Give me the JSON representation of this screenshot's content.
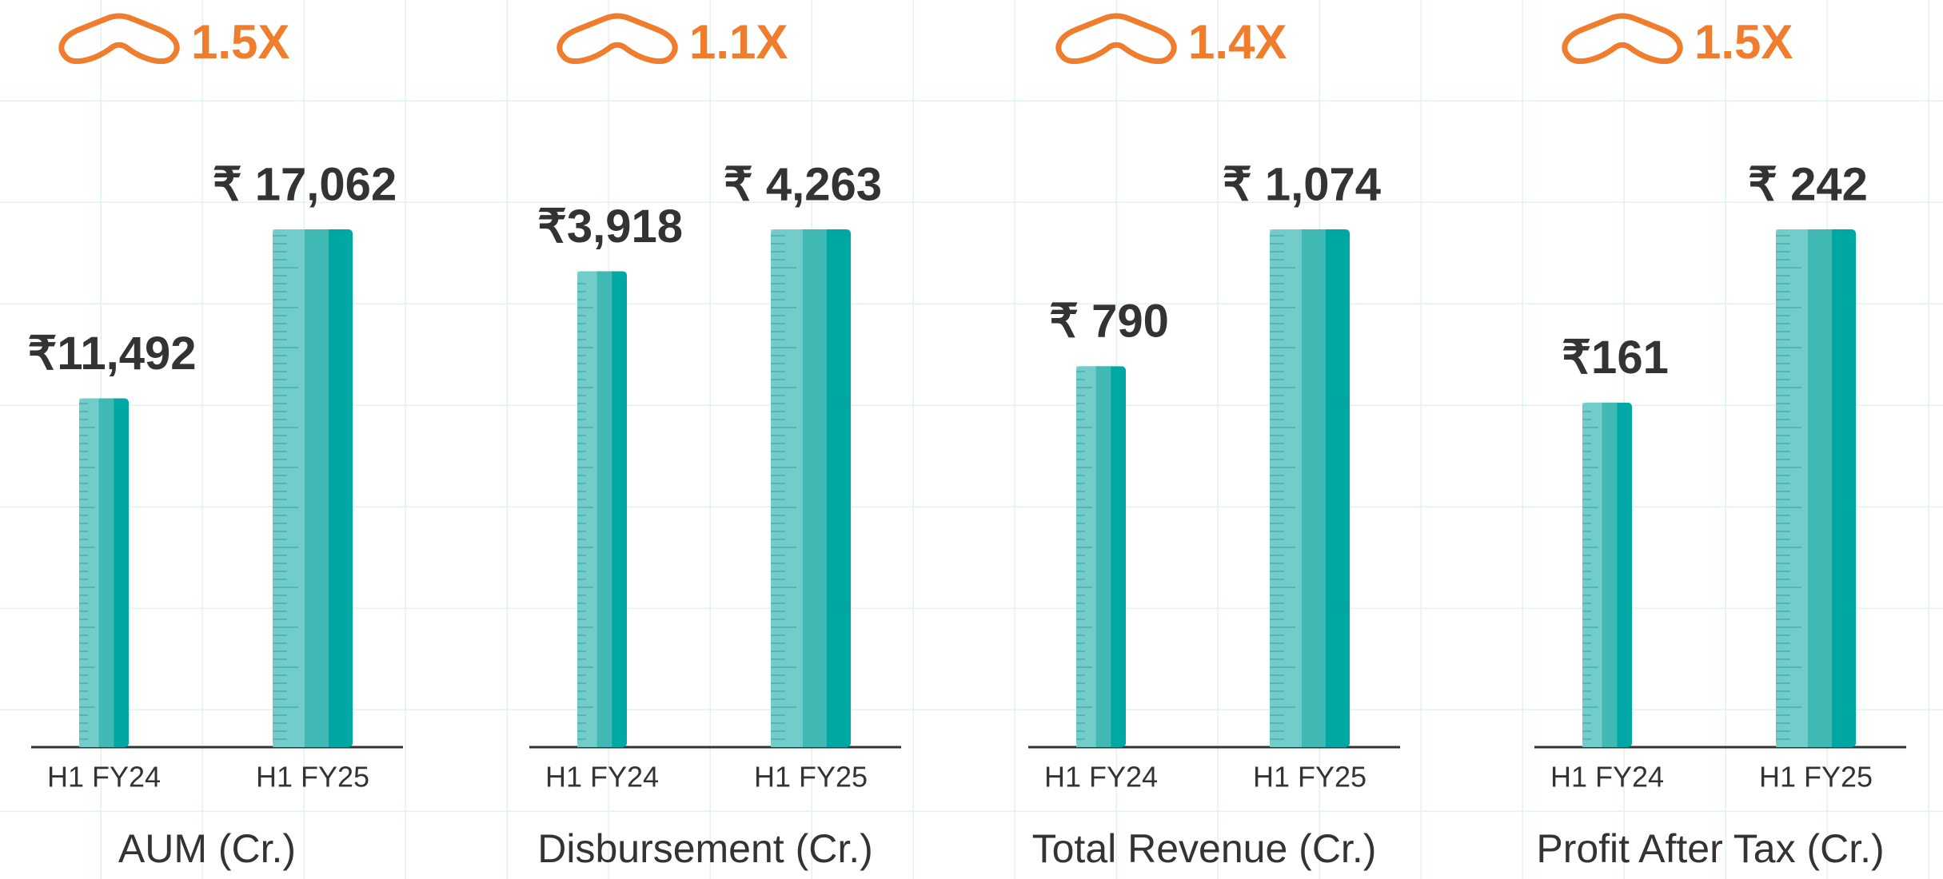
{
  "chart_data": [
    {
      "type": "bar",
      "title": "AUM (Cr.)",
      "growth": "1.5X",
      "categories": [
        "H1 FY24",
        "H1 FY25"
      ],
      "values": [
        11492,
        17062
      ],
      "value_labels": [
        "₹11,492",
        "₹ 17,062"
      ],
      "color": "#00a8a3"
    },
    {
      "type": "bar",
      "title": "Disbursement (Cr.)",
      "growth": "1.1X",
      "categories": [
        "H1 FY24",
        "H1 FY25"
      ],
      "values": [
        3918,
        4263
      ],
      "value_labels": [
        "₹3,918",
        "₹ 4,263"
      ],
      "color": "#00a8a3"
    },
    {
      "type": "bar",
      "title": "Total Revenue (Cr.)",
      "growth": "1.4X",
      "categories": [
        "H1 FY24",
        "H1 FY25"
      ],
      "values": [
        790,
        1074
      ],
      "value_labels": [
        "₹ 790",
        "₹ 1,074"
      ],
      "color": "#00a8a3"
    },
    {
      "type": "bar",
      "title": "Profit After Tax (Cr.)",
      "growth": "1.5X",
      "categories": [
        "H1 FY24",
        "H1 FY25"
      ],
      "values": [
        161,
        242
      ],
      "value_labels": [
        "₹161",
        "₹ 242"
      ],
      "color": "#00a8a3"
    }
  ]
}
